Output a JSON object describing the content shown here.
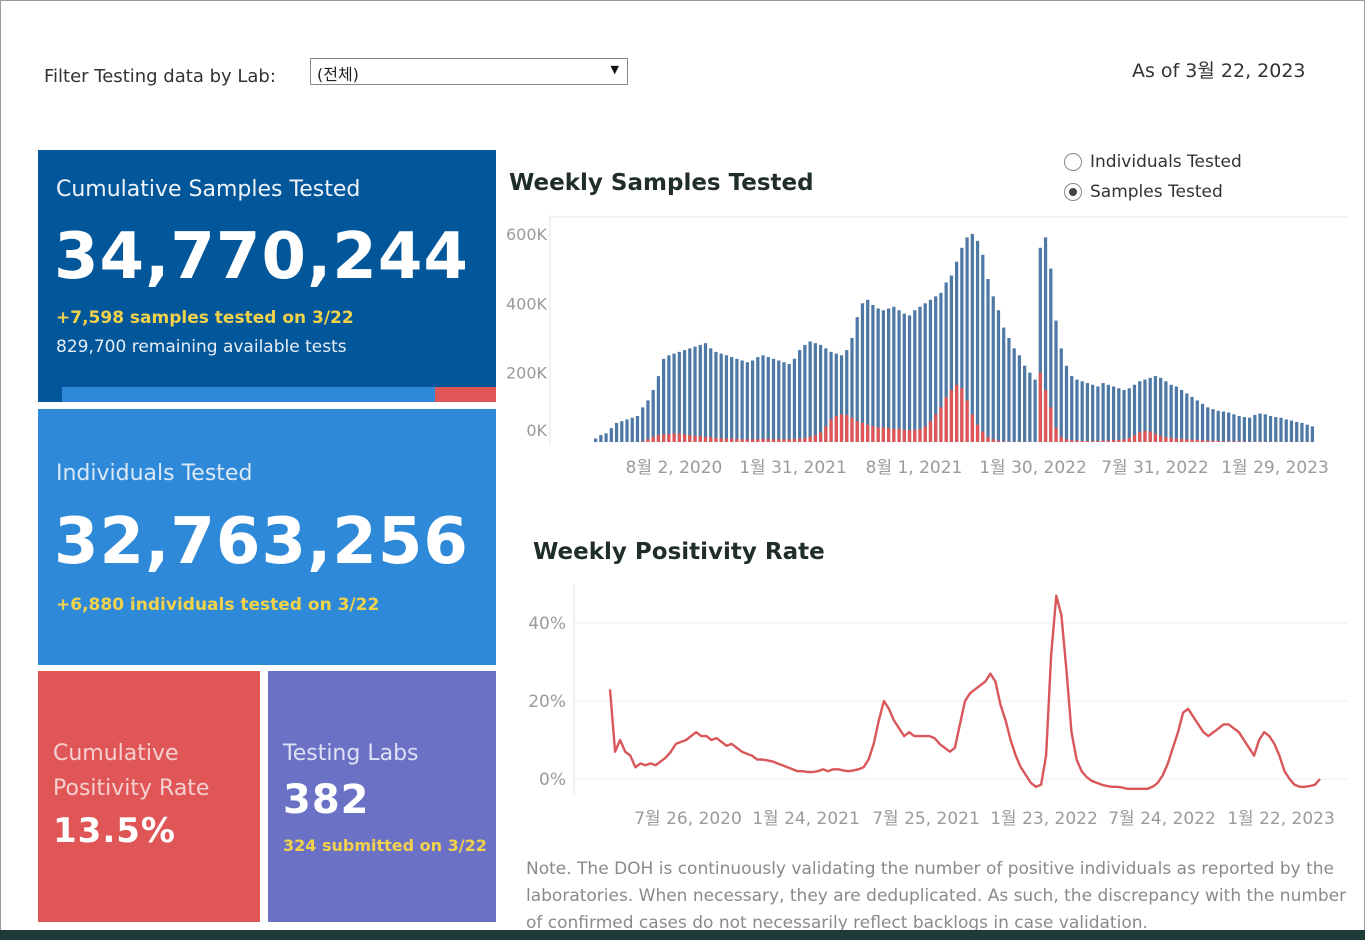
{
  "filter": {
    "label": "Filter Testing data by Lab:",
    "selected": "(전체)"
  },
  "as_of": "As of 3월 22, 2023",
  "cards": {
    "cumulative_samples": {
      "title": "Cumulative Samples Tested",
      "value": "34,770,244",
      "delta": "+7,598 samples tested on 3/22",
      "remaining": "829,700 remaining available tests",
      "used_fraction": 0.86,
      "color": "#02579b"
    },
    "individuals": {
      "title": "Individuals Tested",
      "value": "32,763,256",
      "delta": "+6,880  individuals  tested on 3/22",
      "color": "#2f89d9"
    },
    "positivity": {
      "title_line1": "Cumulative",
      "title_line2": "Positivity Rate",
      "value": "13.5%",
      "color": "#e05656"
    },
    "labs": {
      "title": "Testing Labs",
      "value": "382",
      "delta": "324 submitted on 3/22",
      "color": "#6b72c6"
    }
  },
  "toggle": {
    "options": [
      "Individuals Tested",
      "Samples Tested"
    ],
    "selected": "Samples Tested"
  },
  "chart_data": [
    {
      "type": "bar",
      "title": "Weekly Samples Tested",
      "ylabel": "",
      "xlabel": "",
      "y_ticks": [
        "600K",
        "400K",
        "200K",
        "0K"
      ],
      "x_ticks": [
        "8월 2, 2020",
        "1월 31, 2021",
        "8월 1, 2021",
        "1월 30, 2022",
        "7월 31, 2022",
        "1월 29, 2023"
      ],
      "ylim": [
        0,
        620000
      ],
      "series": [
        {
          "color": "#4e79a7",
          "values": [
            10000,
            20000,
            25000,
            40000,
            55000,
            60000,
            65000,
            70000,
            75000,
            100000,
            120000,
            150000,
            190000,
            240000,
            250000,
            255000,
            260000,
            265000,
            270000,
            275000,
            280000,
            285000,
            270000,
            260000,
            255000,
            250000,
            245000,
            240000,
            235000,
            230000,
            235000,
            245000,
            250000,
            245000,
            240000,
            235000,
            230000,
            225000,
            240000,
            265000,
            280000,
            290000,
            285000,
            280000,
            270000,
            260000,
            255000,
            250000,
            265000,
            300000,
            360000,
            400000,
            410000,
            395000,
            385000,
            380000,
            385000,
            390000,
            380000,
            370000,
            365000,
            380000,
            390000,
            400000,
            410000,
            420000,
            430000,
            460000,
            480000,
            520000,
            560000,
            590000,
            600000,
            580000,
            540000,
            470000,
            420000,
            380000,
            330000,
            300000,
            270000,
            250000,
            220000,
            200000,
            180000,
            560000,
            590000,
            500000,
            350000,
            270000,
            220000,
            190000,
            180000,
            175000,
            170000,
            165000,
            160000,
            170000,
            165000,
            160000,
            155000,
            150000,
            155000,
            165000,
            175000,
            180000,
            185000,
            190000,
            185000,
            175000,
            165000,
            160000,
            150000,
            140000,
            130000,
            120000,
            110000,
            100000,
            95000,
            90000,
            88000,
            85000,
            80000,
            75000,
            72000,
            70000,
            78000,
            82000,
            80000,
            75000,
            72000,
            70000,
            65000,
            62000,
            58000,
            55000,
            50000,
            45000
          ]
        },
        {
          "color": "#e05656",
          "values": [
            0,
            0,
            0,
            0,
            0,
            0,
            0,
            0,
            0,
            2000,
            8000,
            15000,
            20000,
            22000,
            23000,
            25000,
            24000,
            22000,
            20000,
            18000,
            17000,
            15000,
            14000,
            12000,
            11000,
            10000,
            10000,
            9000,
            8000,
            8000,
            8000,
            8000,
            9000,
            9000,
            8000,
            8000,
            8000,
            8000,
            9000,
            10000,
            12000,
            15000,
            20000,
            28000,
            45000,
            65000,
            75000,
            80000,
            78000,
            70000,
            60000,
            55000,
            50000,
            45000,
            42000,
            42000,
            40000,
            38000,
            38000,
            36000,
            35000,
            35000,
            38000,
            45000,
            60000,
            80000,
            100000,
            130000,
            150000,
            165000,
            155000,
            120000,
            80000,
            50000,
            30000,
            15000,
            8000,
            4000,
            2000,
            1000,
            1000,
            1000,
            500,
            500,
            500,
            200000,
            150000,
            100000,
            40000,
            15000,
            8000,
            5000,
            4000,
            3000,
            3000,
            3000,
            3000,
            4000,
            4000,
            5000,
            6000,
            8000,
            12000,
            20000,
            28000,
            32000,
            30000,
            24000,
            18000,
            14000,
            12000,
            10000,
            9000,
            8000,
            7000,
            6000,
            5000,
            4000,
            3000,
            3000,
            2000,
            2000,
            2000,
            2000,
            1000,
            1000,
            1000,
            1000,
            1000,
            1000,
            1000,
            500,
            500,
            500,
            500,
            500,
            500,
            500
          ]
        }
      ]
    },
    {
      "type": "line",
      "title": "Weekly Positivity Rate",
      "ylabel": "",
      "xlabel": "",
      "y_ticks": [
        "40%",
        "20%",
        "0%"
      ],
      "x_ticks": [
        "7월 26, 2020",
        "1월 24, 2021",
        "7월 25, 2021",
        "1월 23, 2022",
        "7월 24, 2022",
        "1월 22, 2023"
      ],
      "ylim": [
        0,
        47
      ],
      "series": [
        {
          "color": "#d9575a",
          "values": [
            23,
            7,
            10,
            7,
            6,
            3,
            4,
            3.5,
            4,
            3.5,
            4.5,
            5.5,
            7,
            9,
            9.5,
            10,
            11,
            12,
            11,
            11,
            10,
            10.5,
            9.5,
            8.5,
            9,
            8,
            7,
            6.5,
            6,
            5,
            5,
            4.8,
            4.5,
            4,
            3.5,
            3,
            2.5,
            2,
            2,
            1.8,
            1.8,
            2,
            2.5,
            2,
            2.5,
            2.5,
            2.2,
            2,
            2.2,
            2.5,
            3,
            5,
            9,
            15,
            20,
            18,
            15,
            13,
            11,
            12,
            11,
            11,
            11,
            11,
            10.5,
            9,
            8,
            7,
            8,
            14,
            20,
            22,
            23,
            24,
            25,
            27,
            25,
            19,
            15,
            10,
            6,
            3,
            1,
            -1,
            -2,
            -1.5,
            6,
            32,
            47,
            42,
            28,
            12,
            5,
            2,
            0.5,
            -0.5,
            -1,
            -1.5,
            -1.8,
            -2,
            -2,
            -2.2,
            -2.5,
            -2.5,
            -2.5,
            -2.5,
            -2.5,
            -2,
            -1,
            1,
            4,
            8,
            12,
            17,
            18,
            16,
            14,
            12,
            11,
            12,
            13,
            14,
            14,
            13,
            12,
            10,
            8,
            6,
            10,
            12,
            11,
            9,
            6,
            2,
            0,
            -1.5,
            -2,
            -2,
            -1.8,
            -1.5,
            0
          ]
        }
      ]
    }
  ],
  "note": "Note. The DOH is continuously validating the number of positive individuals as reported by the laboratories. When necessary, they are deduplicated. As such, the discrepancy with the number of confirmed cases do not necessarily reflect backlogs in case validation."
}
